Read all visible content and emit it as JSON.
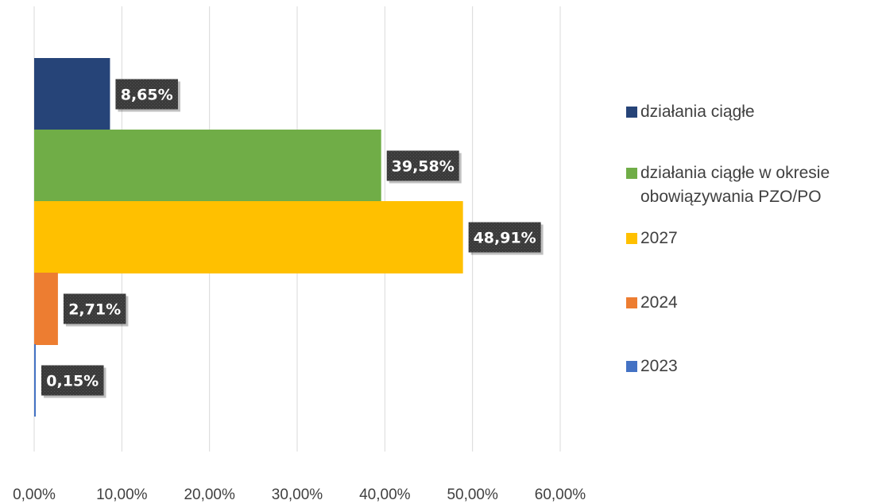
{
  "chart_data": {
    "type": "bar",
    "orientation": "horizontal",
    "xlim": [
      0,
      60
    ],
    "x_ticks": [
      "0,00%",
      "10,00%",
      "20,00%",
      "30,00%",
      "40,00%",
      "50,00%",
      "60,00%"
    ],
    "grid": true,
    "legend_position": "right",
    "series": [
      {
        "name": "działania ciągłe",
        "value": 8.65,
        "label": "8,65%",
        "color": "#264478"
      },
      {
        "name": "działania ciągłe w okresie obowiązywania PZO/PO",
        "value": 39.58,
        "label": "39,58%",
        "color": "#70AD47"
      },
      {
        "name": "2027",
        "value": 48.91,
        "label": "48,91%",
        "color": "#FFC000"
      },
      {
        "name": "2024",
        "value": 2.71,
        "label": "2,71%",
        "color": "#ED7D31"
      },
      {
        "name": "2023",
        "value": 0.15,
        "label": "0,15%",
        "color": "#4472C4"
      }
    ]
  },
  "legend": {
    "items": [
      {
        "label": "działania ciągłe",
        "color": "#264478"
      },
      {
        "label": "działania ciągłe w okresie obowiązywania PZO/PO",
        "color": "#70AD47"
      },
      {
        "label": "2027",
        "color": "#FFC000"
      },
      {
        "label": "2024",
        "color": "#ED7D31"
      },
      {
        "label": "2023",
        "color": "#4472C4"
      }
    ]
  }
}
